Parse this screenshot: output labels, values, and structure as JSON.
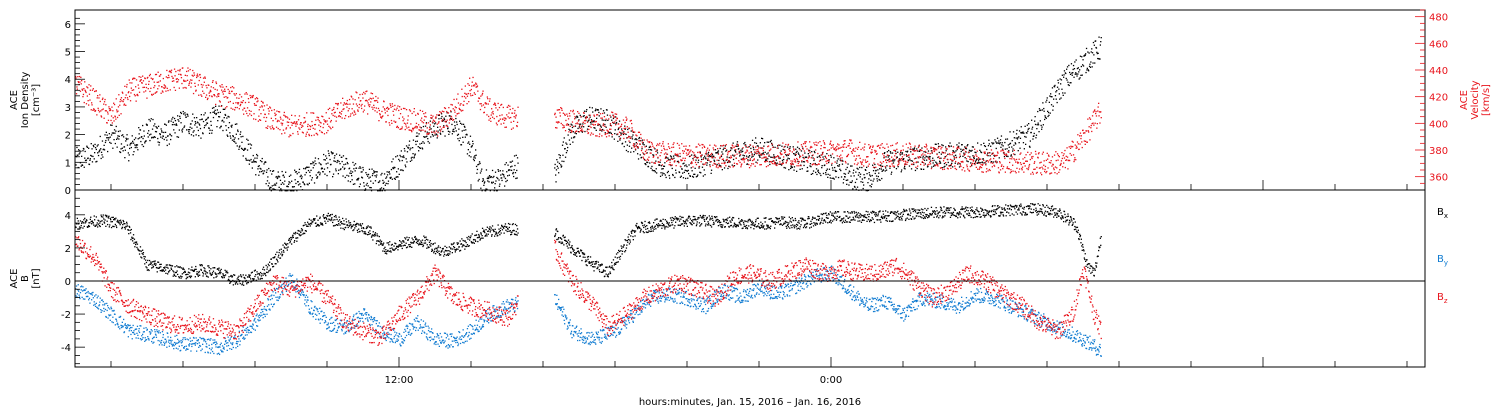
{
  "chart_data": [
    {
      "type": "scatter",
      "panel": "top",
      "ylabel_left": [
        "ACE",
        "Ion Density",
        "[cm⁻³]"
      ],
      "ylabel_right": [
        "ACE",
        "Velocity",
        "[km/s]"
      ],
      "ylim_left": [
        0,
        6.5
      ],
      "ylim_right": [
        350,
        485
      ],
      "yticks_left": [
        "0",
        "1",
        "2",
        "3",
        "4",
        "5",
        "6"
      ],
      "yticks_right": [
        "360",
        "380",
        "400",
        "420",
        "440",
        "460",
        "480"
      ],
      "x_range_hours": [
        3,
        40.5
      ],
      "data_end_hours": 31.5,
      "gap_hours": [
        15.3,
        16.3
      ],
      "series": [
        {
          "axis": "left",
          "color": "#000000",
          "anchors": [
            [
              3,
              1.1
            ],
            [
              3.5,
              1.3
            ],
            [
              4,
              2.0
            ],
            [
              4.5,
              1.5
            ],
            [
              5,
              2.2
            ],
            [
              5.5,
              2.0
            ],
            [
              6,
              2.5
            ],
            [
              6.5,
              2.3
            ],
            [
              7,
              2.7
            ],
            [
              7.5,
              2.0
            ],
            [
              8,
              1.0
            ],
            [
              8.5,
              0.3
            ],
            [
              9,
              0.25
            ],
            [
              9.5,
              0.6
            ],
            [
              10,
              1.0
            ],
            [
              10.5,
              0.8
            ],
            [
              11,
              0.4
            ],
            [
              11.5,
              0.3
            ],
            [
              12,
              1.0
            ],
            [
              12.5,
              1.8
            ],
            [
              13,
              2.3
            ],
            [
              13.5,
              2.5
            ],
            [
              14,
              1.5
            ],
            [
              14.3,
              0.3
            ],
            [
              14.8,
              0.4
            ],
            [
              15.2,
              0.9
            ],
            [
              16.3,
              0.5
            ],
            [
              16.7,
              2.0
            ],
            [
              17.2,
              2.6
            ],
            [
              17.8,
              2.5
            ],
            [
              18.3,
              1.9
            ],
            [
              18.8,
              1.4
            ],
            [
              19.3,
              0.9
            ],
            [
              20,
              0.8
            ],
            [
              21,
              1.2
            ],
            [
              22,
              1.5
            ],
            [
              22.8,
              1.2
            ],
            [
              23.5,
              1.0
            ],
            [
              24,
              0.9
            ],
            [
              24.5,
              0.5
            ],
            [
              25,
              0.4
            ],
            [
              25.5,
              1.0
            ],
            [
              26.5,
              1.2
            ],
            [
              27.5,
              1.3
            ],
            [
              28.5,
              1.4
            ],
            [
              29.5,
              2.0
            ],
            [
              30,
              3.0
            ],
            [
              30.5,
              4.0
            ],
            [
              31,
              4.6
            ],
            [
              31.5,
              5.2
            ]
          ],
          "scatter": 0.45
        },
        {
          "axis": "right",
          "color": "#e8141c",
          "anchors": [
            [
              3,
              430
            ],
            [
              3.5,
              418
            ],
            [
              4,
              405
            ],
            [
              4.5,
              425
            ],
            [
              5,
              428
            ],
            [
              5.5,
              432
            ],
            [
              6,
              435
            ],
            [
              6.5,
              428
            ],
            [
              7,
              422
            ],
            [
              7.5,
              418
            ],
            [
              8,
              412
            ],
            [
              8.5,
              402
            ],
            [
              9,
              398
            ],
            [
              9.5,
              400
            ],
            [
              10,
              402
            ],
            [
              10.5,
              412
            ],
            [
              11,
              418
            ],
            [
              11.5,
              410
            ],
            [
              12,
              405
            ],
            [
              12.5,
              402
            ],
            [
              13,
              398
            ],
            [
              13.5,
              410
            ],
            [
              14,
              428
            ],
            [
              14.5,
              410
            ],
            [
              15,
              405
            ],
            [
              16.3,
              405
            ],
            [
              16.8,
              402
            ],
            [
              17.4,
              398
            ],
            [
              17.9,
              400
            ],
            [
              18.4,
              395
            ],
            [
              18.8,
              380
            ],
            [
              19.5,
              377
            ],
            [
              20.5,
              376
            ],
            [
              21.5,
              376
            ],
            [
              22.5,
              377
            ],
            [
              23.5,
              378
            ],
            [
              24.5,
              380
            ],
            [
              25,
              376
            ],
            [
              26,
              377
            ],
            [
              27,
              375
            ],
            [
              28,
              373
            ],
            [
              29,
              372
            ],
            [
              30,
              370
            ],
            [
              30.5,
              372
            ],
            [
              31,
              390
            ],
            [
              31.5,
              410
            ]
          ],
          "scatter": 9
        }
      ]
    },
    {
      "type": "scatter",
      "panel": "bottom",
      "ylabel_left": [
        "ACE",
        "B",
        "[nT]"
      ],
      "ylim": [
        -5.2,
        5.5
      ],
      "yticks": [
        "-4",
        "-2",
        "0",
        "2",
        "4"
      ],
      "zero_line": true,
      "xlabel": "hours:minutes, Jan. 15, 2016 – Jan. 16, 2016",
      "xticks": [
        {
          "hour": 12,
          "label": "12:00"
        },
        {
          "hour": 24,
          "label": "0:00"
        }
      ],
      "x_range_hours": [
        3,
        40.5
      ],
      "data_end_hours": 31.5,
      "gap_hours": [
        15.3,
        16.3
      ],
      "legend_placement": "right",
      "series": [
        {
          "name": "B",
          "sub": "x",
          "color": "#000000",
          "anchors": [
            [
              3,
              3.5
            ],
            [
              3.8,
              3.7
            ],
            [
              4.4,
              3.4
            ],
            [
              5,
              1.0
            ],
            [
              5.5,
              0.8
            ],
            [
              6,
              0.5
            ],
            [
              6.5,
              0.7
            ],
            [
              7,
              0.5
            ],
            [
              7.5,
              0.0
            ],
            [
              8.2,
              0.5
            ],
            [
              8.6,
              1.5
            ],
            [
              9,
              2.5
            ],
            [
              9.5,
              3.5
            ],
            [
              10,
              3.8
            ],
            [
              10.6,
              3.4
            ],
            [
              11.2,
              3.0
            ],
            [
              11.6,
              2.0
            ],
            [
              12.1,
              2.3
            ],
            [
              12.6,
              2.5
            ],
            [
              13.2,
              1.8
            ],
            [
              13.8,
              2.3
            ],
            [
              14.3,
              2.9
            ],
            [
              15,
              3.2
            ],
            [
              16.3,
              3.0
            ],
            [
              16.8,
              2.0
            ],
            [
              17.4,
              1.0
            ],
            [
              17.8,
              0.5
            ],
            [
              18.2,
              2.0
            ],
            [
              18.6,
              3.2
            ],
            [
              19.3,
              3.5
            ],
            [
              20.2,
              3.7
            ],
            [
              21,
              3.6
            ],
            [
              22,
              3.5
            ],
            [
              22.6,
              3.6
            ],
            [
              23.2,
              3.5
            ],
            [
              24,
              3.9
            ],
            [
              25,
              3.9
            ],
            [
              25.8,
              4.0
            ],
            [
              26.4,
              4.1
            ],
            [
              27.2,
              4.2
            ],
            [
              28.1,
              4.2
            ],
            [
              28.7,
              4.3
            ],
            [
              29.6,
              4.4
            ],
            [
              30.3,
              4.2
            ],
            [
              30.8,
              3.4
            ],
            [
              31.1,
              1.0
            ],
            [
              31.3,
              0.5
            ],
            [
              31.5,
              2.8
            ]
          ],
          "scatter": 0.35
        },
        {
          "name": "B",
          "sub": "y",
          "color": "#0f7bd1",
          "anchors": [
            [
              3,
              -0.5
            ],
            [
              3.5,
              -1.0
            ],
            [
              4,
              -2.0
            ],
            [
              4.5,
              -3.0
            ],
            [
              5,
              -3.2
            ],
            [
              5.5,
              -3.5
            ],
            [
              6,
              -3.8
            ],
            [
              6.5,
              -3.8
            ],
            [
              7,
              -4.0
            ],
            [
              7.5,
              -3.5
            ],
            [
              8,
              -2.5
            ],
            [
              8.5,
              -1.0
            ],
            [
              9,
              0.2
            ],
            [
              9.5,
              -1.5
            ],
            [
              10,
              -2.5
            ],
            [
              10.5,
              -2.8
            ],
            [
              11,
              -2.0
            ],
            [
              11.5,
              -3.0
            ],
            [
              12,
              -3.5
            ],
            [
              12.5,
              -2.5
            ],
            [
              13,
              -3.5
            ],
            [
              13.5,
              -3.6
            ],
            [
              14,
              -3.0
            ],
            [
              14.5,
              -2.0
            ],
            [
              15,
              -1.5
            ],
            [
              16.3,
              -1.0
            ],
            [
              16.8,
              -3.0
            ],
            [
              17.4,
              -3.5
            ],
            [
              18,
              -3.0
            ],
            [
              18.5,
              -2.0
            ],
            [
              19,
              -1.0
            ],
            [
              19.5,
              -0.8
            ],
            [
              20,
              -1.0
            ],
            [
              20.5,
              -1.5
            ],
            [
              21,
              -0.5
            ],
            [
              21.5,
              -1.0
            ],
            [
              22,
              -0.3
            ],
            [
              22.5,
              -0.8
            ],
            [
              23,
              -0.3
            ],
            [
              23.5,
              0.3
            ],
            [
              24,
              0.5
            ],
            [
              24.5,
              -0.5
            ],
            [
              25,
              -1.5
            ],
            [
              25.5,
              -1.2
            ],
            [
              26,
              -2.0
            ],
            [
              26.5,
              -1.0
            ],
            [
              27,
              -1.2
            ],
            [
              27.5,
              -1.5
            ],
            [
              28,
              -0.8
            ],
            [
              28.5,
              -1.0
            ],
            [
              29,
              -1.5
            ],
            [
              29.5,
              -2.0
            ],
            [
              30,
              -2.5
            ],
            [
              30.5,
              -3.0
            ],
            [
              31,
              -3.5
            ],
            [
              31.5,
              -4.2
            ]
          ],
          "scatter": 0.45
        },
        {
          "name": "B",
          "sub": "z",
          "color": "#e8141c",
          "anchors": [
            [
              3,
              2.5
            ],
            [
              3.5,
              1.5
            ],
            [
              4,
              -0.5
            ],
            [
              4.5,
              -1.5
            ],
            [
              5,
              -2.0
            ],
            [
              5.5,
              -2.5
            ],
            [
              6,
              -2.7
            ],
            [
              6.5,
              -2.5
            ],
            [
              7,
              -2.8
            ],
            [
              7.5,
              -3.0
            ],
            [
              8,
              -1.5
            ],
            [
              8.5,
              0.0
            ],
            [
              9,
              -0.5
            ],
            [
              9.5,
              0.0
            ],
            [
              10,
              -1.0
            ],
            [
              10.5,
              -2.5
            ],
            [
              11,
              -3.0
            ],
            [
              11.5,
              -3.4
            ],
            [
              12,
              -2.0
            ],
            [
              12.5,
              -1.0
            ],
            [
              13,
              0.5
            ],
            [
              13.5,
              -1.0
            ],
            [
              14,
              -1.5
            ],
            [
              14.5,
              -1.8
            ],
            [
              15,
              -2.2
            ],
            [
              16.3,
              2.0
            ],
            [
              16.8,
              0.0
            ],
            [
              17.4,
              -1.5
            ],
            [
              17.8,
              -2.8
            ],
            [
              18.3,
              -2.0
            ],
            [
              18.8,
              -1.0
            ],
            [
              19.3,
              -0.5
            ],
            [
              19.8,
              0.0
            ],
            [
              20.3,
              -0.5
            ],
            [
              20.8,
              -1.0
            ],
            [
              21.3,
              0.3
            ],
            [
              21.8,
              0.5
            ],
            [
              22.3,
              0.0
            ],
            [
              22.8,
              0.5
            ],
            [
              23.3,
              1.0
            ],
            [
              23.8,
              0.5
            ],
            [
              24.3,
              0.8
            ],
            [
              24.8,
              0.5
            ],
            [
              25.3,
              0.5
            ],
            [
              25.8,
              1.0
            ],
            [
              26.3,
              0.0
            ],
            [
              26.8,
              -1.0
            ],
            [
              27.3,
              -0.5
            ],
            [
              27.8,
              0.5
            ],
            [
              28.3,
              0.0
            ],
            [
              28.8,
              -0.8
            ],
            [
              29.3,
              -1.5
            ],
            [
              29.8,
              -2.5
            ],
            [
              30.3,
              -3.0
            ],
            [
              30.7,
              -2.0
            ],
            [
              31,
              0.8
            ],
            [
              31.3,
              -2.0
            ],
            [
              31.5,
              -3.0
            ]
          ],
          "scatter": 0.55
        }
      ]
    }
  ]
}
